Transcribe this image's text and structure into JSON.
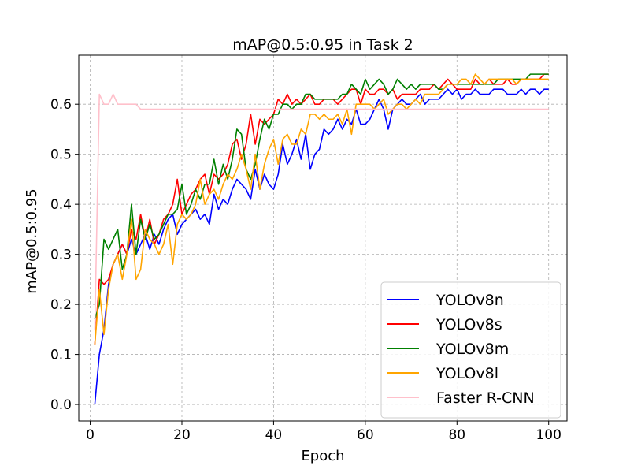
{
  "chart_data": {
    "type": "line",
    "title": "mAP@0.5:0.95 in Task 2",
    "xlabel": "Epoch",
    "ylabel": "mAP@0.5:0.95",
    "xlim": [
      -2.5,
      104
    ],
    "ylim": [
      -0.033,
      0.698
    ],
    "x_ticks": [
      0,
      20,
      40,
      60,
      80,
      100
    ],
    "y_ticks": [
      0.0,
      0.1,
      0.2,
      0.3,
      0.4,
      0.5,
      0.6
    ],
    "x_tick_labels": [
      "0",
      "20",
      "40",
      "60",
      "80",
      "100"
    ],
    "y_tick_labels": [
      "0.0",
      "0.1",
      "0.2",
      "0.3",
      "0.4",
      "0.5",
      "0.6"
    ],
    "grid": true,
    "grid_style": "dashed",
    "legend_position": "lower right",
    "x": [
      1,
      2,
      3,
      4,
      5,
      6,
      7,
      8,
      9,
      10,
      11,
      12,
      13,
      14,
      15,
      16,
      17,
      18,
      19,
      20,
      21,
      22,
      23,
      24,
      25,
      26,
      27,
      28,
      29,
      30,
      31,
      32,
      33,
      34,
      35,
      36,
      37,
      38,
      39,
      40,
      41,
      42,
      43,
      44,
      45,
      46,
      47,
      48,
      49,
      50,
      51,
      52,
      53,
      54,
      55,
      56,
      57,
      58,
      59,
      60,
      61,
      62,
      63,
      64,
      65,
      66,
      67,
      68,
      69,
      70,
      71,
      72,
      73,
      74,
      75,
      76,
      77,
      78,
      79,
      80,
      81,
      82,
      83,
      84,
      85,
      86,
      87,
      88,
      89,
      90,
      91,
      92,
      93,
      94,
      95,
      96,
      97,
      98,
      99,
      100
    ],
    "series": [
      {
        "name": "YOLOv8n",
        "color": "#0000ff",
        "values": [
          0.0,
          0.1,
          0.15,
          0.24,
          0.28,
          0.3,
          0.32,
          0.3,
          0.33,
          0.3,
          0.32,
          0.34,
          0.31,
          0.34,
          0.32,
          0.35,
          0.37,
          0.38,
          0.34,
          0.36,
          0.37,
          0.38,
          0.39,
          0.37,
          0.38,
          0.36,
          0.42,
          0.39,
          0.41,
          0.4,
          0.43,
          0.45,
          0.44,
          0.43,
          0.41,
          0.47,
          0.43,
          0.46,
          0.44,
          0.43,
          0.46,
          0.52,
          0.48,
          0.5,
          0.53,
          0.49,
          0.54,
          0.47,
          0.5,
          0.51,
          0.55,
          0.54,
          0.55,
          0.57,
          0.55,
          0.57,
          0.56,
          0.59,
          0.56,
          0.56,
          0.57,
          0.59,
          0.61,
          0.59,
          0.55,
          0.59,
          0.6,
          0.61,
          0.6,
          0.6,
          0.61,
          0.62,
          0.6,
          0.61,
          0.61,
          0.61,
          0.62,
          0.63,
          0.62,
          0.63,
          0.61,
          0.62,
          0.62,
          0.63,
          0.62,
          0.62,
          0.62,
          0.63,
          0.63,
          0.63,
          0.62,
          0.62,
          0.62,
          0.63,
          0.62,
          0.63,
          0.63,
          0.62,
          0.63,
          0.63
        ]
      },
      {
        "name": "YOLOv8s",
        "color": "#ff0000",
        "values": [
          0.12,
          0.25,
          0.24,
          0.25,
          0.28,
          0.3,
          0.32,
          0.3,
          0.35,
          0.33,
          0.38,
          0.33,
          0.37,
          0.32,
          0.34,
          0.37,
          0.38,
          0.4,
          0.45,
          0.38,
          0.4,
          0.42,
          0.43,
          0.45,
          0.46,
          0.42,
          0.46,
          0.45,
          0.46,
          0.48,
          0.52,
          0.53,
          0.49,
          0.52,
          0.58,
          0.52,
          0.57,
          0.56,
          0.57,
          0.58,
          0.61,
          0.6,
          0.62,
          0.6,
          0.61,
          0.6,
          0.61,
          0.62,
          0.6,
          0.6,
          0.61,
          0.61,
          0.61,
          0.6,
          0.61,
          0.62,
          0.63,
          0.63,
          0.6,
          0.63,
          0.62,
          0.62,
          0.63,
          0.63,
          0.62,
          0.63,
          0.61,
          0.62,
          0.62,
          0.62,
          0.62,
          0.63,
          0.63,
          0.63,
          0.64,
          0.63,
          0.64,
          0.65,
          0.64,
          0.63,
          0.63,
          0.63,
          0.63,
          0.65,
          0.64,
          0.64,
          0.65,
          0.64,
          0.64,
          0.64,
          0.65,
          0.64,
          0.64,
          0.65,
          0.65,
          0.65,
          0.65,
          0.65,
          0.66,
          0.66
        ]
      },
      {
        "name": "YOLOv8m",
        "color": "#008000",
        "values": [
          0.17,
          0.2,
          0.33,
          0.31,
          0.33,
          0.35,
          0.27,
          0.3,
          0.4,
          0.3,
          0.37,
          0.33,
          0.36,
          0.33,
          0.34,
          0.36,
          0.38,
          0.38,
          0.39,
          0.44,
          0.38,
          0.4,
          0.43,
          0.41,
          0.44,
          0.44,
          0.49,
          0.44,
          0.48,
          0.45,
          0.49,
          0.55,
          0.54,
          0.47,
          0.45,
          0.48,
          0.53,
          0.57,
          0.55,
          0.58,
          0.58,
          0.6,
          0.6,
          0.59,
          0.6,
          0.6,
          0.62,
          0.62,
          0.61,
          0.61,
          0.61,
          0.61,
          0.61,
          0.61,
          0.62,
          0.62,
          0.64,
          0.63,
          0.62,
          0.65,
          0.63,
          0.64,
          0.65,
          0.64,
          0.62,
          0.63,
          0.65,
          0.64,
          0.63,
          0.64,
          0.63,
          0.64,
          0.64,
          0.64,
          0.64,
          0.63,
          0.63,
          0.64,
          0.64,
          0.64,
          0.64,
          0.64,
          0.64,
          0.64,
          0.64,
          0.64,
          0.64,
          0.64,
          0.65,
          0.65,
          0.65,
          0.65,
          0.65,
          0.65,
          0.65,
          0.66,
          0.66,
          0.66,
          0.66,
          0.66
        ]
      },
      {
        "name": "YOLOv8l",
        "color": "#ffa500",
        "values": [
          0.12,
          0.23,
          0.14,
          0.23,
          0.28,
          0.3,
          0.25,
          0.3,
          0.37,
          0.25,
          0.27,
          0.35,
          0.33,
          0.32,
          0.3,
          0.32,
          0.36,
          0.28,
          0.36,
          0.38,
          0.37,
          0.38,
          0.4,
          0.45,
          0.4,
          0.42,
          0.43,
          0.41,
          0.44,
          0.46,
          0.45,
          0.47,
          0.5,
          0.47,
          0.43,
          0.5,
          0.43,
          0.48,
          0.51,
          0.53,
          0.48,
          0.53,
          0.54,
          0.52,
          0.52,
          0.55,
          0.54,
          0.58,
          0.58,
          0.57,
          0.58,
          0.57,
          0.57,
          0.58,
          0.56,
          0.59,
          0.54,
          0.6,
          0.6,
          0.6,
          0.6,
          0.59,
          0.6,
          0.61,
          0.58,
          0.59,
          0.6,
          0.6,
          0.59,
          0.6,
          0.61,
          0.6,
          0.62,
          0.62,
          0.62,
          0.62,
          0.63,
          0.64,
          0.64,
          0.64,
          0.65,
          0.65,
          0.64,
          0.66,
          0.65,
          0.64,
          0.65,
          0.65,
          0.65,
          0.65,
          0.65,
          0.65,
          0.64,
          0.65,
          0.65,
          0.65,
          0.65,
          0.65,
          0.65,
          0.65
        ]
      },
      {
        "name": "Faster R-CNN",
        "color": "#ffc0cb",
        "values": [
          0.15,
          0.62,
          0.6,
          0.6,
          0.62,
          0.6,
          0.6,
          0.6,
          0.6,
          0.6,
          0.59,
          0.59,
          0.59,
          0.59,
          0.59,
          0.59,
          0.59,
          0.59,
          0.59,
          0.59,
          0.59,
          0.59,
          0.59,
          0.59,
          0.59,
          0.59,
          0.59,
          0.59,
          0.59,
          0.59,
          0.59,
          0.59,
          0.59,
          0.59,
          0.59,
          0.59,
          0.59,
          0.59,
          0.59,
          0.59,
          0.59,
          0.59,
          0.59,
          0.59,
          0.59,
          0.59,
          0.59,
          0.59,
          0.59,
          0.59,
          0.59,
          0.59,
          0.59,
          0.59,
          0.59,
          0.59,
          0.59,
          0.59,
          0.59,
          0.59,
          0.59,
          0.59,
          0.59,
          0.59,
          0.59,
          0.59,
          0.59,
          0.59,
          0.59,
          0.59,
          0.59,
          0.59,
          0.59,
          0.59,
          0.59,
          0.59,
          0.59,
          0.59,
          0.59,
          0.59,
          0.59,
          0.59,
          0.59,
          0.59,
          0.59,
          0.59,
          0.59,
          0.59,
          0.59,
          0.59,
          0.59,
          0.59,
          0.59,
          0.59,
          0.59,
          0.59,
          0.59,
          0.59,
          0.59,
          0.59
        ]
      }
    ]
  }
}
